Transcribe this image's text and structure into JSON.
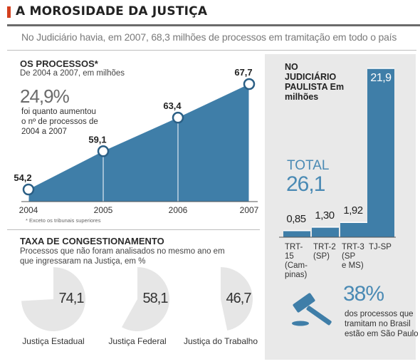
{
  "header": {
    "title": "A MOROSIDADE DA JUSTIÇA",
    "subtitle": "No Judiciário havia, em 2007, 68,3 milhões de processos em tramitação em todo o país"
  },
  "processos": {
    "title": "OS PROCESSOS*",
    "unit": "De 2004 a 2007, em milhões",
    "highlight_value": "24,9%",
    "highlight_text": "foi quanto aumentou o nº de processos de 2004 a 2007",
    "footnote": "* Exceto os tribunais superiores"
  },
  "congestionamento": {
    "title": "TAXA DE CONGESTIONAMENTO",
    "description": "Processos que não foram analisados no mesmo ano em que ingressaram na Justiça, em %"
  },
  "paulista": {
    "title": "NO JUDICIÁRIO PAULISTA Em milhões",
    "total_label": "TOTAL",
    "total_value": "26,1",
    "share_value": "38%",
    "share_text": "dos processos que tramitam no Brasil estão em São Paulo"
  },
  "colors": {
    "area_fill": "#3f7ea8",
    "bar_fill": "#3f7ea8",
    "pie_slice": "#e6e6e6",
    "pie_rest": "#ffffff",
    "accent_blue": "#4a8ab4",
    "accent_red": "#d4401f"
  },
  "chart_data": [
    {
      "type": "area",
      "title": "OS PROCESSOS*",
      "subtitle": "De 2004 a 2007, em milhões",
      "categories": [
        "2004",
        "2005",
        "2006",
        "2007"
      ],
      "values": [
        54.2,
        59.1,
        63.4,
        67.7
      ],
      "value_labels": [
        "54,2",
        "59,1",
        "63,4",
        "67,7"
      ]
    },
    {
      "type": "pie",
      "title": "TAXA DE CONGESTIONAMENTO",
      "charts": [
        {
          "label": "Justiça Estadual",
          "value": 74.1,
          "value_label": "74,1"
        },
        {
          "label": "Justiça Federal",
          "value": 58.1,
          "value_label": "58,1"
        },
        {
          "label": "Justiça do Trabalho",
          "value": 46.7,
          "value_label": "46,7"
        }
      ]
    },
    {
      "type": "bar",
      "title": "NO JUDICIÁRIO PAULISTA",
      "categories": [
        "TRT-15 (Cam-pinas)",
        "TRT-2 (SP)",
        "TRT-3 (SP e MS)",
        "TJ-SP"
      ],
      "category_lines": [
        [
          "TRT-15",
          "(Cam-",
          "pinas)"
        ],
        [
          "TRT-2",
          "(SP)"
        ],
        [
          "TRT-3",
          "(SP",
          "e MS)"
        ],
        [
          "TJ-SP"
        ]
      ],
      "values": [
        0.85,
        1.3,
        1.92,
        21.9
      ],
      "value_labels": [
        "0,85",
        "1,30",
        "1,92",
        "21,9"
      ]
    }
  ]
}
